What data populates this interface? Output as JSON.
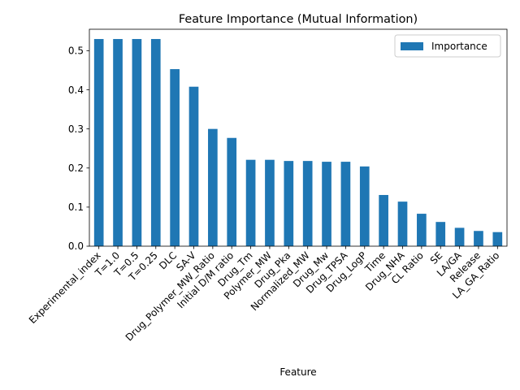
{
  "chart_data": {
    "type": "bar",
    "title": "Feature Importance (Mutual Information)",
    "xlabel": "Feature",
    "ylabel": "",
    "ylim": [
      0,
      0.555
    ],
    "yticks": [
      "0.0",
      "0.1",
      "0.2",
      "0.3",
      "0.4",
      "0.5"
    ],
    "legend": {
      "placement": "top-right",
      "entries": [
        "Importance"
      ]
    },
    "bar_color": "#1f77b4",
    "grid": false,
    "categories": [
      "Experimental_index",
      "T=1.0",
      "T=0.5",
      "T=0.25",
      "DLC",
      "SA-V",
      "Drug_Polymer_MW_Ratio",
      "Initial D/M ratio",
      "Drug_Tm",
      "Polymer_MW",
      "Drug_Pka",
      "Normalized_MW",
      "Drug_Mw",
      "Drug_TPSA",
      "Drug_LogP",
      "Time",
      "Drug_NHA",
      "CL Ratio",
      "SE",
      "LA/GA",
      "Release",
      "LA_GA_Ratio"
    ],
    "series": [
      {
        "name": "Importance",
        "values": [
          0.53,
          0.53,
          0.53,
          0.53,
          0.453,
          0.408,
          0.3,
          0.277,
          0.221,
          0.221,
          0.218,
          0.218,
          0.216,
          0.216,
          0.204,
          0.131,
          0.114,
          0.083,
          0.062,
          0.047,
          0.039,
          0.036
        ]
      }
    ]
  }
}
